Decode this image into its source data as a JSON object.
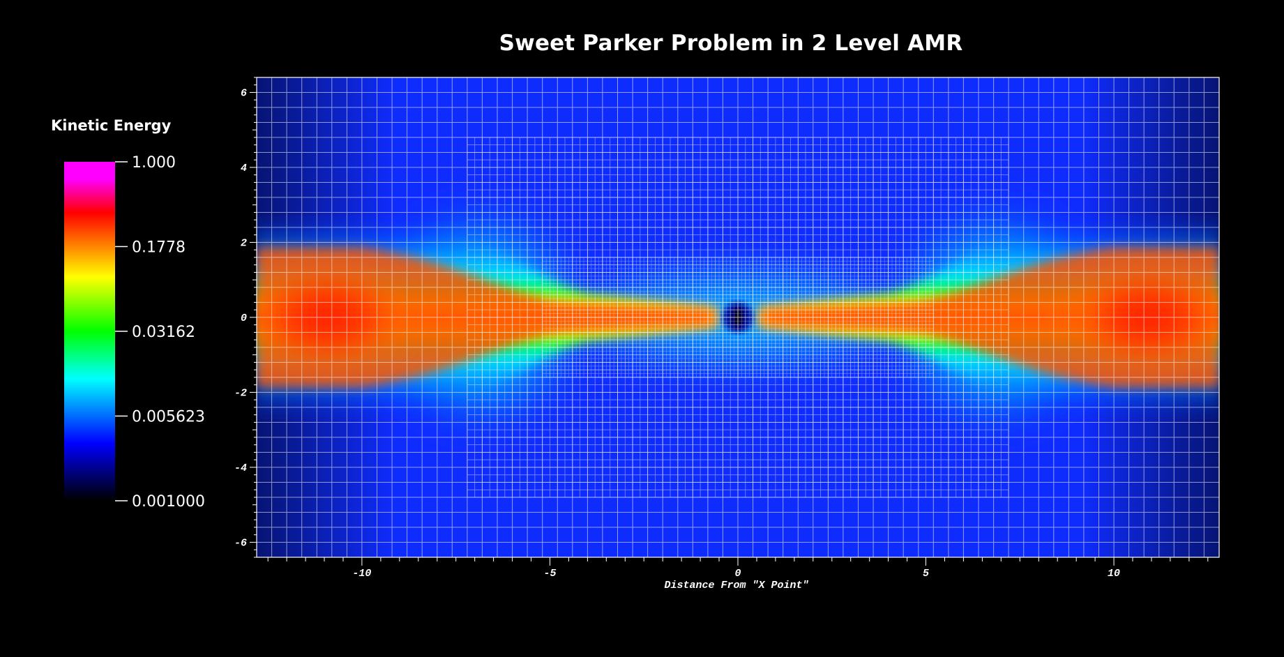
{
  "chart_data": {
    "type": "heatmap",
    "title": "Sweet Parker Problem in 2 Level AMR",
    "xlabel": "Distance From \"X Point\"",
    "ylabel": "",
    "xlim": [
      -12.8,
      12.8
    ],
    "ylim": [
      -6.4,
      6.4
    ],
    "x_ticks": [
      "-10",
      "-5",
      "0",
      "5",
      "10"
    ],
    "y_ticks": [
      "6",
      "4",
      "2",
      "0",
      "-2",
      "-4",
      "-6"
    ],
    "grid": true,
    "colorbar": {
      "title": "Kinetic Energy",
      "scale": "log",
      "range": [
        0.001,
        1.0
      ],
      "labels": [
        "1.000",
        "0.1778",
        "0.03162",
        "0.005623",
        "0.001000"
      ],
      "colors": [
        "#ff00ff",
        "#ff0000",
        "#ffff00",
        "#00ff00",
        "#00ffff",
        "#0000ff",
        "#000000"
      ]
    },
    "amr_levels": [
      {
        "level": 1,
        "x_range": [
          -12.8,
          12.8
        ],
        "y_range": [
          -6.4,
          6.4
        ],
        "cell_size": 0.4
      },
      {
        "level": 2,
        "x_range": [
          -7.2,
          7.2
        ],
        "y_range": [
          -4.8,
          4.8
        ],
        "cell_size": 0.2
      },
      {
        "level": 3,
        "x_range": [
          -5.2,
          5.2
        ],
        "y_range": [
          -1.6,
          1.6
        ],
        "cell_size": 0.1
      }
    ]
  }
}
